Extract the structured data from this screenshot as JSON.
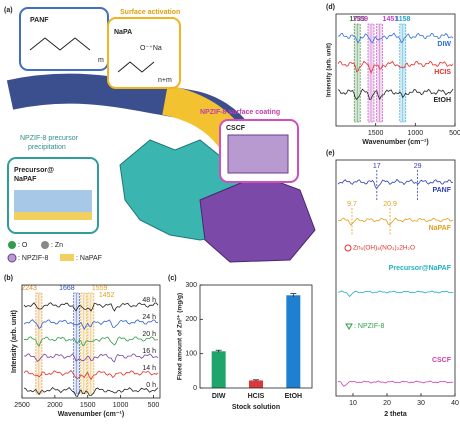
{
  "panel_a": {
    "label": "(a)",
    "panf": "PANF",
    "activation": "Surface activation",
    "napa": "NaPA",
    "napa_group": "O⁻⁺Na",
    "napa_index": "n+m",
    "panf_index": "m",
    "coating": "NPZIF-8 surface coating",
    "cscf": "CSCF",
    "precip_1": "NPZIF-8 precursor",
    "precip_2": "precipitation",
    "precursor_1": "Precursor@",
    "precursor_2": "NaPAF",
    "legend_o": ": O",
    "legend_zn": ": Zn",
    "legend_zif": ": NPZIF-8",
    "legend_napaf": ": NaPAF"
  },
  "panel_b": {
    "label": "(b)",
    "xlabel": "Wavenumber (cm⁻¹)",
    "ylabel": "Intensity (arb. unit)",
    "xlim": [
      2500,
      400
    ],
    "xticks": [
      2500,
      2000,
      1500,
      1000,
      500
    ],
    "peaks": [
      2243,
      1668,
      1559,
      1452
    ],
    "peak_colors": [
      "#e08a1e",
      "#2b4fb5",
      "#e0a020",
      "#e0a020"
    ],
    "series": [
      {
        "name": "48 h",
        "color": "#222222"
      },
      {
        "name": "24 h",
        "color": "#2f5fd0"
      },
      {
        "name": "20 h",
        "color": "#2e9e4a"
      },
      {
        "name": "16 h",
        "color": "#7b3fa0"
      },
      {
        "name": "14 h",
        "color": "#e0302a"
      },
      {
        "name": "0 h",
        "color": "#222222"
      }
    ]
  },
  "panel_c": {
    "label": "(c)",
    "type": "bar",
    "xlabel": "Stock solution",
    "ylabel": "Fixed amount of Zn²⁺ (mg/g)",
    "categories": [
      "DIW",
      "HCIS",
      "EtOH"
    ],
    "values": [
      107,
      22,
      270
    ],
    "errors": [
      3,
      2,
      5
    ],
    "colors": [
      "#1fa56a",
      "#d83a3a",
      "#1f7fd0"
    ],
    "ylim": [
      0,
      300
    ],
    "yticks": [
      0,
      100,
      200,
      300
    ]
  },
  "panel_d": {
    "label": "(d)",
    "xlabel": "Wavenumber (cm⁻¹)",
    "ylabel": "Intensity (arb. unit)",
    "xlim": [
      2000,
      500
    ],
    "xticks": [
      1500,
      1000,
      500
    ],
    "peaks": [
      1733,
      1559,
      1451,
      1158
    ],
    "peak_colors": [
      "#2e7d32",
      "#c040c0",
      "#c040c0",
      "#1f9fd0"
    ],
    "series": [
      {
        "name": "DIW",
        "color": "#2f6fe0"
      },
      {
        "name": "HCIS",
        "color": "#e0302a"
      },
      {
        "name": "EtOH",
        "color": "#222222"
      }
    ]
  },
  "panel_e": {
    "label": "(e)",
    "xlabel": "2 theta",
    "xlim": [
      5,
      40
    ],
    "xticks": [
      10,
      20,
      30,
      40
    ],
    "peaks_panf": [
      17,
      29
    ],
    "peaks_napaf": [
      9.7,
      20.9
    ],
    "panf": "PANF",
    "napaf": "NaPAF",
    "zn_phase": "Zn₅(OH)₈(NO₃)₂2H₂O",
    "precursor": "Precursor@NaPAF",
    "zif": ": NPZIF-8",
    "cscf": "CSCF"
  }
}
